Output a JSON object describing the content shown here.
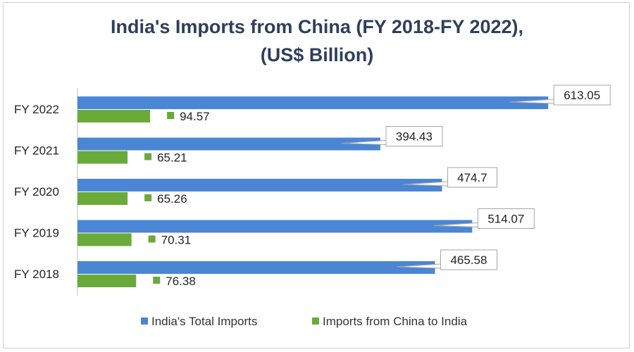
{
  "chart_data": {
    "type": "bar",
    "orientation": "horizontal",
    "title": "India's Imports from China (FY 2018-FY 2022),",
    "subtitle": "(US$ Billion)",
    "categories": [
      "FY 2018",
      "FY 2019",
      "FY 2020",
      "FY 2021",
      "FY 2022"
    ],
    "series": [
      {
        "name": "India's Total Imports",
        "values": [
          465.58,
          514.07,
          474.7,
          394.43,
          613.05
        ],
        "labels": [
          "465.58",
          "514.07",
          "474.7",
          "394.43",
          "613.05"
        ],
        "color": "#4a86d4"
      },
      {
        "name": "Imports from China to India",
        "values": [
          76.38,
          70.31,
          65.26,
          65.21,
          94.57
        ],
        "labels": [
          "76.38",
          "70.31",
          "65.26",
          "65.21",
          "94.57"
        ],
        "color": "#6aaa3a"
      }
    ],
    "xlim": [
      0,
      700
    ],
    "grid": false,
    "legend": "bottom"
  }
}
